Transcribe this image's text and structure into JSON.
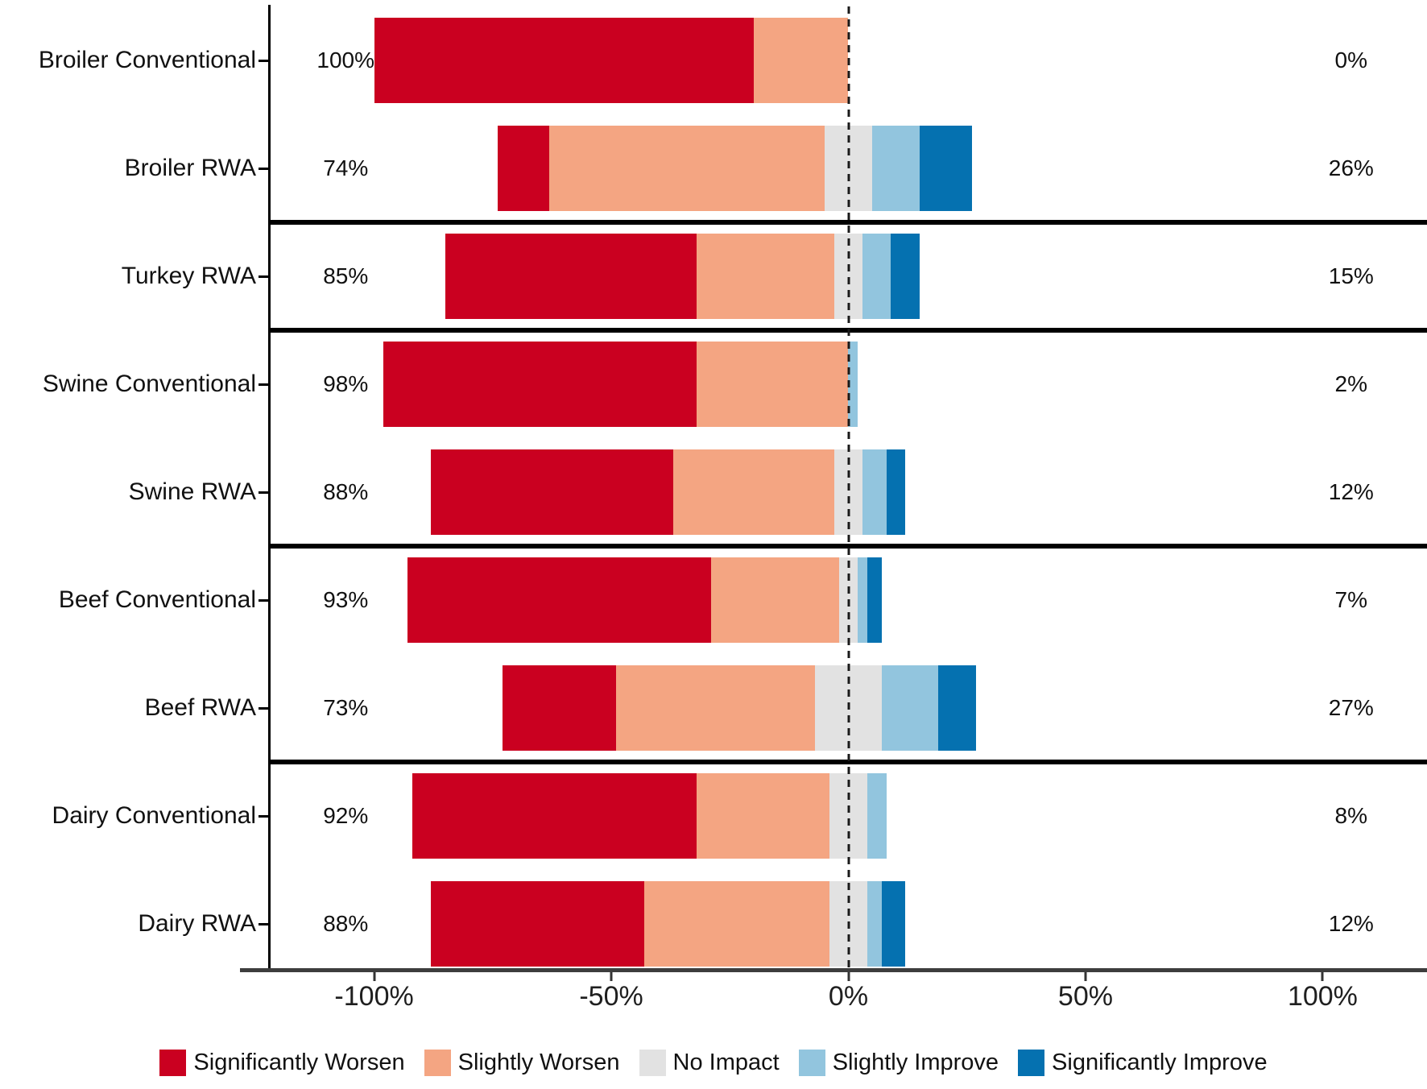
{
  "chart_data": {
    "type": "bar",
    "variant": "diverging-stacked-likert",
    "title": "",
    "xlabel": "",
    "ylabel": "",
    "xlim": [
      -122,
      122
    ],
    "grid": false,
    "zero_line_style": "dashed",
    "legend_position": "bottom",
    "neutral_category_split_on_zero": true,
    "annotation_offset_pct": 106,
    "categories": [
      "Broiler Conventional",
      "Broiler RWA",
      "Turkey RWA",
      "Swine Conventional",
      "Swine RWA",
      "Beef Conventional",
      "Beef RWA",
      "Dairy Conventional",
      "Dairy RWA"
    ],
    "series": [
      {
        "name": "Significantly Worsen",
        "color": "#CA0020",
        "values": [
          80,
          11,
          53,
          66,
          51,
          64,
          24,
          60,
          45
        ]
      },
      {
        "name": "Slightly Worsen",
        "color": "#F4A582",
        "values": [
          20,
          58,
          29,
          32,
          34,
          27,
          42,
          28,
          39
        ]
      },
      {
        "name": "No Impact",
        "color": "#E2E2E2",
        "values": [
          0,
          10,
          6,
          0,
          6,
          4,
          14,
          8,
          8
        ]
      },
      {
        "name": "Slightly Improve",
        "color": "#92C5DE",
        "values": [
          0,
          10,
          6,
          2,
          5,
          2,
          12,
          4,
          3
        ]
      },
      {
        "name": "Significantly Improve",
        "color": "#0571B0",
        "values": [
          0,
          11,
          6,
          0,
          4,
          3,
          8,
          0,
          5
        ]
      }
    ],
    "row_labels_left": [
      "100%",
      "74%",
      "85%",
      "98%",
      "88%",
      "93%",
      "73%",
      "92%",
      "88%"
    ],
    "row_labels_right": [
      "0%",
      "26%",
      "15%",
      "2%",
      "12%",
      "7%",
      "27%",
      "8%",
      "12%"
    ],
    "x_ticks": [
      {
        "value": -100,
        "label": "-100%"
      },
      {
        "value": -50,
        "label": "-50%"
      },
      {
        "value": 0,
        "label": "0%"
      },
      {
        "value": 50,
        "label": "50%"
      },
      {
        "value": 100,
        "label": "100%"
      }
    ],
    "group_separators_after_row": [
      1,
      2,
      4,
      6
    ],
    "axis_color": "#3d3d3d",
    "separator_color": "#000000"
  }
}
